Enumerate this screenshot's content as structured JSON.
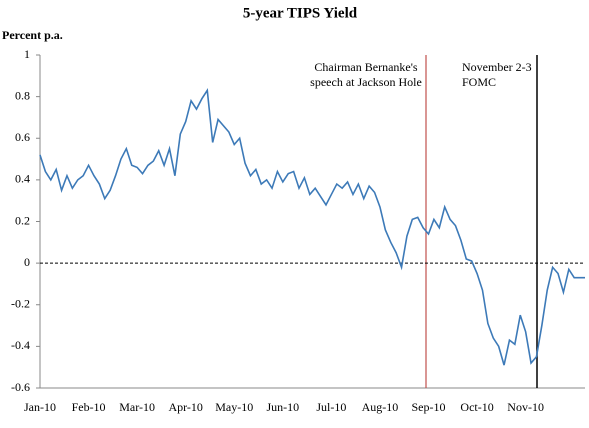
{
  "chart_data": {
    "type": "line",
    "title": "5-year TIPS Yield",
    "y_label": "Percent p.a.",
    "categories": [
      "Jan-10",
      null,
      null,
      null,
      null,
      null,
      null,
      null,
      null,
      "Feb-10",
      null,
      null,
      null,
      null,
      null,
      null,
      null,
      null,
      "Mar-10",
      null,
      null,
      null,
      null,
      null,
      null,
      null,
      null,
      "Apr-10",
      null,
      null,
      null,
      null,
      null,
      null,
      null,
      null,
      "May-10",
      null,
      null,
      null,
      null,
      null,
      null,
      null,
      null,
      "Jun-10",
      null,
      null,
      null,
      null,
      null,
      null,
      null,
      null,
      "Jul-10",
      null,
      null,
      null,
      null,
      null,
      null,
      null,
      null,
      "Aug-10",
      null,
      null,
      null,
      null,
      null,
      null,
      null,
      null,
      "Sep-10",
      null,
      null,
      null,
      null,
      null,
      null,
      null,
      null,
      "Oct-10",
      null,
      null,
      null,
      null,
      null,
      null,
      null,
      null,
      "Nov-10",
      null,
      null,
      null,
      null,
      null,
      null,
      null,
      null,
      null,
      null,
      null
    ],
    "values": [
      0.52,
      0.44,
      0.4,
      0.45,
      0.35,
      0.42,
      0.36,
      0.4,
      0.42,
      0.47,
      0.42,
      0.38,
      0.31,
      0.35,
      0.42,
      0.5,
      0.55,
      0.47,
      0.46,
      0.43,
      0.47,
      0.49,
      0.54,
      0.47,
      0.55,
      0.42,
      0.62,
      0.68,
      0.78,
      0.74,
      0.79,
      0.83,
      0.58,
      0.69,
      0.66,
      0.63,
      0.57,
      0.6,
      0.48,
      0.42,
      0.45,
      0.38,
      0.4,
      0.36,
      0.44,
      0.39,
      0.43,
      0.44,
      0.36,
      0.41,
      0.33,
      0.36,
      0.32,
      0.28,
      0.33,
      0.38,
      0.36,
      0.39,
      0.33,
      0.38,
      0.31,
      0.37,
      0.34,
      0.27,
      0.16,
      0.1,
      0.05,
      -0.02,
      0.13,
      0.21,
      0.22,
      0.17,
      0.14,
      0.21,
      0.17,
      0.27,
      0.21,
      0.18,
      0.11,
      0.02,
      0.01,
      -0.05,
      -0.13,
      -0.29,
      -0.36,
      -0.4,
      -0.49,
      -0.37,
      -0.39,
      -0.25,
      -0.33,
      -0.48,
      -0.45,
      -0.3,
      -0.13,
      -0.02,
      -0.05,
      -0.14,
      -0.03,
      -0.07,
      -0.07,
      -0.07
    ],
    "color": "#3d7ab8",
    "ylim": [
      -0.6,
      1
    ],
    "yticks": [
      1,
      0.8,
      0.6,
      0.4,
      0.2,
      0,
      -0.2,
      -0.4,
      -0.6
    ],
    "annotations": [
      {
        "text": [
          "Chairman Bernanke's",
          "speech at Jackson Hole"
        ],
        "color": "#c0504d"
      },
      {
        "text": [
          "November 2-3",
          "FOMC"
        ],
        "color": "#000000"
      }
    ]
  }
}
